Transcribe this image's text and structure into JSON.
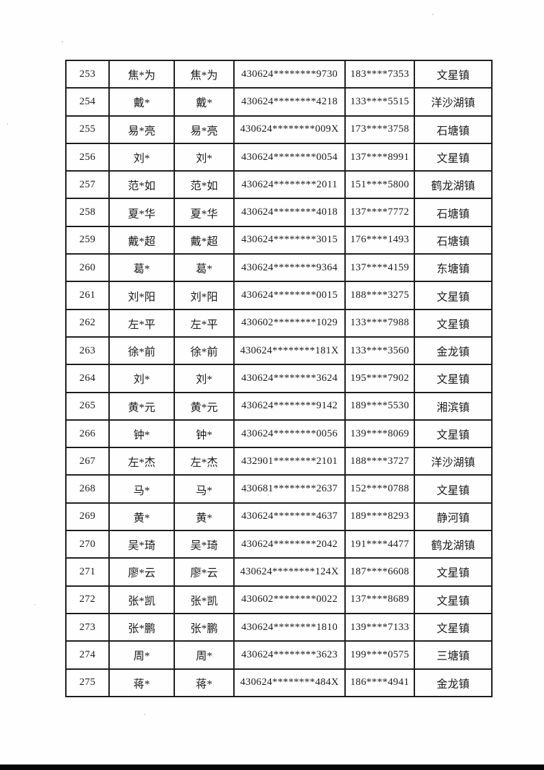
{
  "page": {
    "paper_color": "#fefefe",
    "ink_color": "#1a1a1a",
    "scan_bar_color": "#060606"
  },
  "table": {
    "rows": [
      {
        "no": "253",
        "name": "焦*为",
        "name_confirm": "焦*为",
        "id_number": "430624********9730",
        "phone": "183****7353",
        "town": "文星镇"
      },
      {
        "no": "254",
        "name": "戴*",
        "name_confirm": "戴*",
        "id_number": "430624********4218",
        "phone": "133****5515",
        "town": "洋沙湖镇"
      },
      {
        "no": "255",
        "name": "易*亮",
        "name_confirm": "易*亮",
        "id_number": "430624********009X",
        "phone": "173****3758",
        "town": "石塘镇"
      },
      {
        "no": "256",
        "name": "刘*",
        "name_confirm": "刘*",
        "id_number": "430624********0054",
        "phone": "137****8991",
        "town": "文星镇"
      },
      {
        "no": "257",
        "name": "范*如",
        "name_confirm": "范*如",
        "id_number": "430624********2011",
        "phone": "151****5800",
        "town": "鹤龙湖镇"
      },
      {
        "no": "258",
        "name": "夏*华",
        "name_confirm": "夏*华",
        "id_number": "430624********4018",
        "phone": "137****7772",
        "town": "石塘镇"
      },
      {
        "no": "259",
        "name": "戴*超",
        "name_confirm": "戴*超",
        "id_number": "430624********3015",
        "phone": "176****1493",
        "town": "石塘镇"
      },
      {
        "no": "260",
        "name": "葛*",
        "name_confirm": "葛*",
        "id_number": "430624********9364",
        "phone": "137****4159",
        "town": "东塘镇"
      },
      {
        "no": "261",
        "name": "刘*阳",
        "name_confirm": "刘*阳",
        "id_number": "430624********0015",
        "phone": "188****3275",
        "town": "文星镇"
      },
      {
        "no": "262",
        "name": "左*平",
        "name_confirm": "左*平",
        "id_number": "430602********1029",
        "phone": "133****7988",
        "town": "文星镇"
      },
      {
        "no": "263",
        "name": "徐*前",
        "name_confirm": "徐*前",
        "id_number": "430624********181X",
        "phone": "133****3560",
        "town": "金龙镇"
      },
      {
        "no": "264",
        "name": "刘*",
        "name_confirm": "刘*",
        "id_number": "430624********3624",
        "phone": "195****7902",
        "town": "文星镇"
      },
      {
        "no": "265",
        "name": "黄*元",
        "name_confirm": "黄*元",
        "id_number": "430624********9142",
        "phone": "189****5530",
        "town": "湘滨镇"
      },
      {
        "no": "266",
        "name": "钟*",
        "name_confirm": "钟*",
        "id_number": "430624********0056",
        "phone": "139****8069",
        "town": "文星镇"
      },
      {
        "no": "267",
        "name": "左*杰",
        "name_confirm": "左*杰",
        "id_number": "432901********2101",
        "phone": "188****3727",
        "town": "洋沙湖镇"
      },
      {
        "no": "268",
        "name": "马*",
        "name_confirm": "马*",
        "id_number": "430681********2637",
        "phone": "152****0788",
        "town": "文星镇"
      },
      {
        "no": "269",
        "name": "黄*",
        "name_confirm": "黄*",
        "id_number": "430624********4637",
        "phone": "189****8293",
        "town": "静河镇"
      },
      {
        "no": "270",
        "name": "吴*琦",
        "name_confirm": "吴*琦",
        "id_number": "430624********2042",
        "phone": "191****4477",
        "town": "鹤龙湖镇"
      },
      {
        "no": "271",
        "name": "廖*云",
        "name_confirm": "廖*云",
        "id_number": "430624********124X",
        "phone": "187****6608",
        "town": "文星镇"
      },
      {
        "no": "272",
        "name": "张*凯",
        "name_confirm": "张*凯",
        "id_number": "430602********0022",
        "phone": "137****8689",
        "town": "文星镇"
      },
      {
        "no": "273",
        "name": "张*鹏",
        "name_confirm": "张*鹏",
        "id_number": "430624********1810",
        "phone": "139****7133",
        "town": "文星镇"
      },
      {
        "no": "274",
        "name": "周*",
        "name_confirm": "周*",
        "id_number": "430624********3623",
        "phone": "199****0575",
        "town": "三塘镇"
      },
      {
        "no": "275",
        "name": "蒋*",
        "name_confirm": "蒋*",
        "id_number": "430624********484X",
        "phone": "186****4941",
        "town": "金龙镇"
      }
    ]
  }
}
